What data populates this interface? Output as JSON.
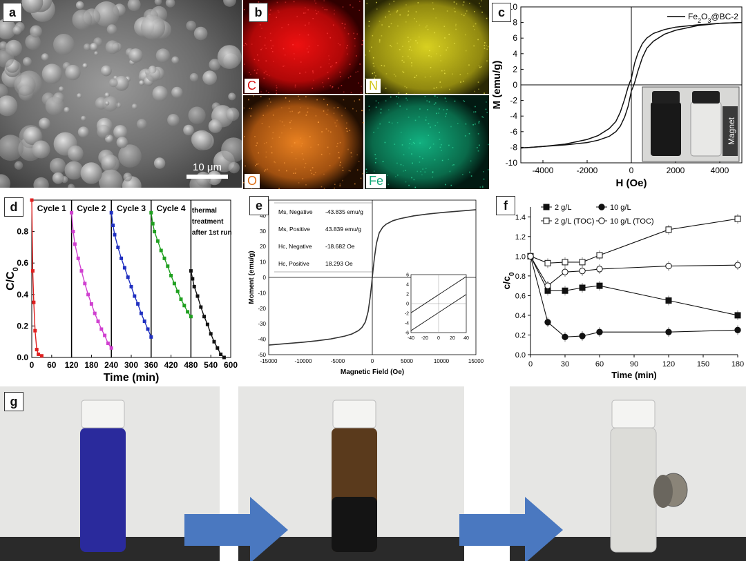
{
  "panel_labels": {
    "a": "a",
    "b": "b",
    "c": "c",
    "d": "d",
    "e": "e",
    "f": "f",
    "g": "g"
  },
  "sem": {
    "scale_bar": "10 μm"
  },
  "eds": {
    "elements": [
      {
        "symbol": "C",
        "color": "#d81010"
      },
      {
        "symbol": "N",
        "color": "#d2c61a"
      },
      {
        "symbol": "O",
        "color": "#e07018"
      },
      {
        "symbol": "Fe",
        "color": "#10a878"
      }
    ]
  },
  "photos_g": {
    "magnet_label": "Magnet",
    "arrow_color": "#4a78c0",
    "solution_colors": [
      "#2a2a9c",
      "#5a3a1c",
      "#dcdcd8"
    ]
  },
  "chart_data": [
    {
      "id": "c",
      "type": "line",
      "legend": "Fe2O3@BC-2",
      "xlabel": "H (Oe)",
      "ylabel": "M (emu/g)",
      "xlim": [
        -5000,
        5000
      ],
      "ylim": [
        -10,
        10
      ],
      "xticks": [
        -4000,
        -2000,
        0,
        2000,
        4000
      ],
      "yticks": [
        -10,
        -8,
        -6,
        -4,
        -2,
        0,
        2,
        4,
        6,
        8,
        10
      ],
      "inset_label": "Magnet",
      "series": [
        {
          "name": "upper branch",
          "x": [
            -5000,
            -4000,
            -3000,
            -2000,
            -1500,
            -1000,
            -700,
            -500,
            -300,
            -150,
            -60,
            0,
            60,
            150,
            300,
            500,
            700,
            1000,
            1500,
            2000,
            3000,
            4000,
            5000
          ],
          "y": [
            -8.1,
            -7.9,
            -7.6,
            -7.0,
            -6.5,
            -5.6,
            -4.7,
            -3.5,
            -1.8,
            -0.3,
            0.4,
            0.8,
            1.6,
            2.8,
            4.1,
            5.3,
            6.0,
            6.6,
            7.1,
            7.4,
            7.7,
            7.9,
            8.0
          ]
        },
        {
          "name": "lower branch",
          "x": [
            -5000,
            -4000,
            -3000,
            -2000,
            -1500,
            -1000,
            -700,
            -500,
            -300,
            -150,
            -60,
            0,
            60,
            150,
            300,
            500,
            700,
            1000,
            1500,
            2000,
            3000,
            4000,
            5000
          ],
          "y": [
            -8.1,
            -7.9,
            -7.7,
            -7.4,
            -7.1,
            -6.6,
            -6.0,
            -5.3,
            -4.1,
            -2.8,
            -1.6,
            -0.8,
            -0.4,
            0.3,
            1.8,
            3.5,
            4.7,
            5.6,
            6.5,
            7.0,
            7.6,
            7.9,
            8.0
          ]
        }
      ]
    },
    {
      "id": "d",
      "type": "line",
      "xlabel": "Time (min)",
      "ylabel": "C/C0",
      "xlim": [
        0,
        600
      ],
      "ylim": [
        0,
        1.0
      ],
      "xticks": [
        0,
        60,
        120,
        180,
        240,
        300,
        360,
        420,
        480,
        540,
        600
      ],
      "yticks": [
        0.0,
        0.2,
        0.4,
        0.6,
        0.8
      ],
      "cycle_labels": [
        "Cycle 1",
        "Cycle 2",
        "Cycle 3",
        "Cycle 4"
      ],
      "note_lines": [
        "thermal",
        "treatment",
        "after 1st run"
      ],
      "series": [
        {
          "name": "Cycle 1",
          "color": "#e02020",
          "x": [
            0,
            3,
            6,
            10,
            15,
            20,
            30
          ],
          "y": [
            1.0,
            0.55,
            0.35,
            0.17,
            0.05,
            0.02,
            0.01
          ]
        },
        {
          "name": "Cycle 2",
          "color": "#d040d0",
          "x": [
            120,
            125,
            130,
            140,
            150,
            160,
            170,
            180,
            190,
            200,
            210,
            220,
            230,
            240
          ],
          "y": [
            0.92,
            0.8,
            0.72,
            0.63,
            0.55,
            0.47,
            0.4,
            0.34,
            0.28,
            0.23,
            0.18,
            0.14,
            0.09,
            0.06
          ]
        },
        {
          "name": "Cycle 3",
          "color": "#2030c0",
          "x": [
            240,
            245,
            250,
            260,
            270,
            280,
            290,
            300,
            310,
            320,
            330,
            340,
            350,
            360
          ],
          "y": [
            0.92,
            0.84,
            0.78,
            0.7,
            0.63,
            0.57,
            0.51,
            0.45,
            0.39,
            0.34,
            0.28,
            0.23,
            0.18,
            0.13
          ]
        },
        {
          "name": "Cycle 4",
          "color": "#20a020",
          "x": [
            360,
            365,
            370,
            380,
            390,
            400,
            410,
            420,
            430,
            440,
            450,
            460,
            470,
            480
          ],
          "y": [
            0.92,
            0.85,
            0.8,
            0.74,
            0.68,
            0.63,
            0.58,
            0.52,
            0.47,
            0.42,
            0.37,
            0.33,
            0.29,
            0.26
          ]
        },
        {
          "name": "thermal treatment",
          "color": "#111111",
          "x": [
            480,
            485,
            490,
            500,
            510,
            520,
            530,
            540,
            550,
            560,
            570,
            580
          ],
          "y": [
            0.55,
            0.5,
            0.45,
            0.39,
            0.32,
            0.26,
            0.21,
            0.15,
            0.1,
            0.06,
            0.02,
            0.0
          ]
        }
      ]
    },
    {
      "id": "e",
      "type": "line",
      "xlabel": "Magnetic Field (Oe)",
      "ylabel": "Moment (emu/g)",
      "xlim": [
        -15000,
        15000
      ],
      "ylim": [
        -50,
        50
      ],
      "xticks": [
        -15000,
        -10000,
        -5000,
        0,
        5000,
        10000,
        15000
      ],
      "yticks": [
        -50,
        -40,
        -30,
        -20,
        -10,
        0,
        10,
        20,
        30,
        40
      ],
      "table": [
        [
          "Ms, Negative",
          "-43.835 emu/g"
        ],
        [
          "Ms, Positive",
          "43.839 emu/g"
        ],
        [
          "Hc, Negative",
          "-18.682 Oe"
        ],
        [
          "Hc, Positive",
          "18.293 Oe"
        ]
      ],
      "series": [
        {
          "name": "moment",
          "x": [
            -15000,
            -12000,
            -10000,
            -8000,
            -6000,
            -4000,
            -3000,
            -2000,
            -1500,
            -1000,
            -600,
            -300,
            -100,
            0,
            100,
            300,
            600,
            1000,
            1500,
            2000,
            3000,
            4000,
            6000,
            8000,
            10000,
            12000,
            15000
          ],
          "y": [
            -43.8,
            -42.7,
            -41.9,
            -41.0,
            -39.8,
            -38.0,
            -36.7,
            -34.4,
            -32.4,
            -28.8,
            -22.0,
            -12.5,
            -4.5,
            0,
            4.5,
            12.5,
            22.0,
            28.8,
            32.4,
            34.4,
            36.7,
            38.0,
            39.8,
            41.0,
            41.9,
            42.7,
            43.8
          ]
        }
      ],
      "inset": {
        "xlim": [
          -40,
          40
        ],
        "ylim": [
          -6,
          6
        ],
        "xticks": [
          -40,
          -20,
          0,
          20,
          40
        ],
        "yticks": [
          -6,
          -4,
          -2,
          0,
          2,
          4,
          6
        ],
        "series": [
          {
            "name": "upper",
            "x": [
              -40,
              40
            ],
            "y": [
              -1.9,
              5.6
            ]
          },
          {
            "name": "lower",
            "x": [
              -40,
              40
            ],
            "y": [
              -5.6,
              1.9
            ]
          }
        ]
      }
    },
    {
      "id": "f",
      "type": "line",
      "xlabel": "Time (min)",
      "ylabel": "c/c0",
      "xlim": [
        0,
        180
      ],
      "ylim": [
        0,
        1.5
      ],
      "xticks": [
        0,
        30,
        60,
        90,
        120,
        150,
        180
      ],
      "yticks": [
        0.0,
        0.2,
        0.4,
        0.6,
        0.8,
        1.0,
        1.2,
        1.4
      ],
      "series": [
        {
          "name": "2 g/L",
          "marker": "square-filled",
          "x": [
            0,
            15,
            30,
            45,
            60,
            120,
            180
          ],
          "y": [
            1.0,
            0.65,
            0.65,
            0.68,
            0.7,
            0.55,
            0.4
          ]
        },
        {
          "name": "10 g/L",
          "marker": "circle-filled",
          "x": [
            0,
            15,
            30,
            45,
            60,
            120,
            180
          ],
          "y": [
            1.0,
            0.33,
            0.18,
            0.19,
            0.23,
            0.23,
            0.25
          ]
        },
        {
          "name": "2 g/L (TOC)",
          "marker": "square-open",
          "x": [
            0,
            15,
            30,
            45,
            60,
            120,
            180
          ],
          "y": [
            1.0,
            0.93,
            0.94,
            0.94,
            1.01,
            1.27,
            1.38
          ]
        },
        {
          "name": "10 g/L (TOC)",
          "marker": "circle-open",
          "x": [
            0,
            15,
            30,
            45,
            60,
            120,
            180
          ],
          "y": [
            1.0,
            0.7,
            0.84,
            0.85,
            0.87,
            0.9,
            0.91
          ]
        }
      ]
    }
  ]
}
